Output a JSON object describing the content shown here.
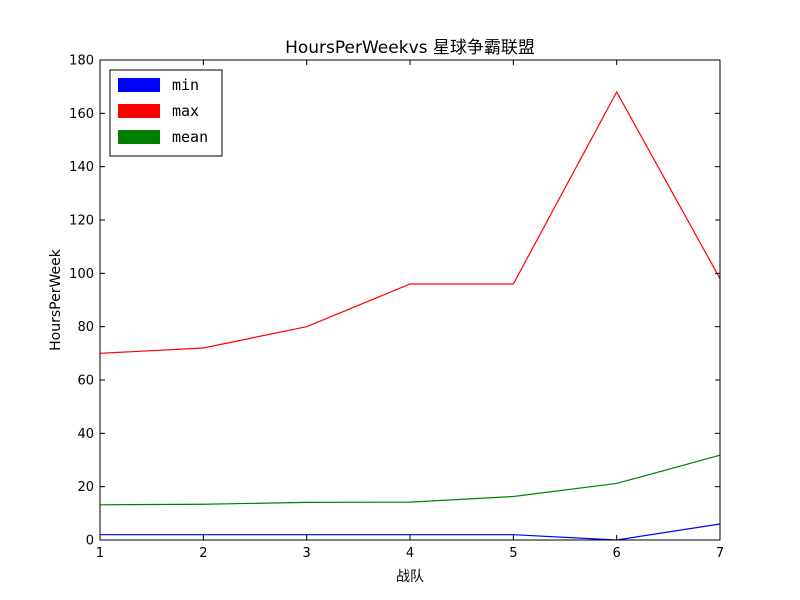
{
  "chart_data": {
    "type": "line",
    "title": "HoursPerWeekvs 星球争霸联盟",
    "xlabel": "战队",
    "ylabel": "HoursPerWeek",
    "x": [
      1,
      2,
      3,
      4,
      5,
      6,
      7
    ],
    "xlim": [
      1,
      7
    ],
    "ylim": [
      0,
      180
    ],
    "xticks": [
      1,
      2,
      3,
      4,
      5,
      6,
      7
    ],
    "yticks": [
      0,
      20,
      40,
      60,
      80,
      100,
      120,
      140,
      160,
      180
    ],
    "grid": false,
    "legend_position": "top-left",
    "series": [
      {
        "name": "min",
        "color": "#0000ff",
        "values": [
          2,
          2,
          2,
          2,
          2,
          0,
          6
        ]
      },
      {
        "name": "max",
        "color": "#ff0000",
        "values": [
          70,
          72,
          80,
          96,
          96,
          168,
          98
        ]
      },
      {
        "name": "mean",
        "color": "#008000",
        "values": [
          13.2,
          13.4,
          14.1,
          14.2,
          16.3,
          21.2,
          31.8
        ]
      }
    ]
  }
}
